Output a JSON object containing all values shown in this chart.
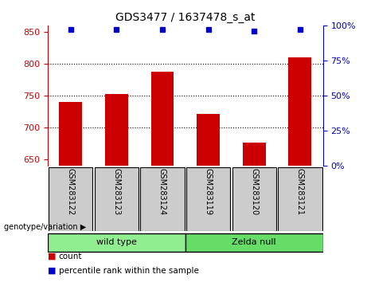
{
  "title": "GDS3477 / 1637478_s_at",
  "samples": [
    "GSM283122",
    "GSM283123",
    "GSM283124",
    "GSM283119",
    "GSM283120",
    "GSM283121"
  ],
  "counts": [
    740,
    752,
    787,
    722,
    676,
    810
  ],
  "percentile_ranks": [
    97,
    97,
    97,
    97,
    96,
    97
  ],
  "ylim_left": [
    640,
    860
  ],
  "ylim_right": [
    0,
    100
  ],
  "yticks_left": [
    650,
    700,
    750,
    800,
    850
  ],
  "yticks_right": [
    0,
    25,
    50,
    75,
    100
  ],
  "bar_color": "#cc0000",
  "dot_color": "#0000cc",
  "bar_width": 0.5,
  "groups": [
    {
      "label": "wild type",
      "indices": [
        0,
        1,
        2
      ],
      "color": "#90ee90"
    },
    {
      "label": "Zelda null",
      "indices": [
        3,
        4,
        5
      ],
      "color": "#66dd66"
    }
  ],
  "group_label_prefix": "genotype/variation",
  "legend_items": [
    {
      "label": "count",
      "color": "#cc0000"
    },
    {
      "label": "percentile rank within the sample",
      "color": "#0000cc"
    }
  ],
  "tick_bg_color": "#cccccc",
  "plot_bg_color": "#ffffff",
  "fig_bg_color": "#ffffff"
}
